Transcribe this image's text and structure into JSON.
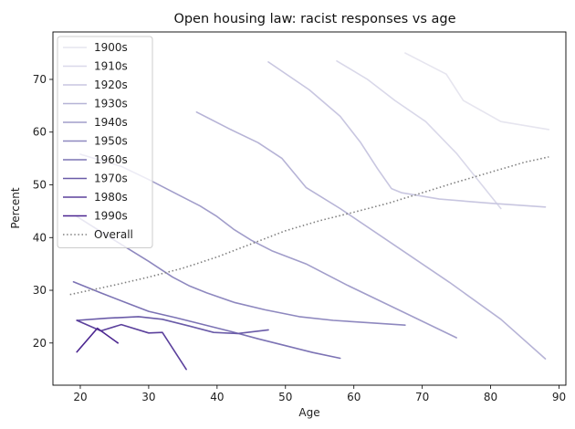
{
  "chart_data": {
    "type": "line",
    "title": "Open housing law: racist responses vs age",
    "xlabel": "Age",
    "ylabel": "Percent",
    "xlim": [
      16,
      91
    ],
    "ylim": [
      12,
      79
    ],
    "xticks": [
      20,
      30,
      40,
      50,
      60,
      70,
      80,
      90
    ],
    "yticks": [
      20,
      30,
      40,
      50,
      60,
      70
    ],
    "grid": false,
    "legend_position": "upper-left",
    "series": [
      {
        "name": "1900s",
        "color": "#e6e5ef",
        "dash": "solid",
        "x": [
          67.5,
          73.5,
          76.0,
          81.5,
          88.5
        ],
        "y": [
          75.0,
          71.0,
          66.0,
          62.0,
          60.5
        ]
      },
      {
        "name": "1910s",
        "color": "#d9d8e9",
        "dash": "solid",
        "x": [
          57.5,
          62.0,
          66.0,
          70.5,
          75.0,
          81.5
        ],
        "y": [
          73.5,
          70.0,
          66.0,
          62.0,
          56.0,
          45.5
        ]
      },
      {
        "name": "1920s",
        "color": "#c8c6e0",
        "dash": "solid",
        "x": [
          47.5,
          53.5,
          58.0,
          61.0,
          63.5,
          65.5,
          67.0,
          72.5,
          80.0,
          88.0
        ],
        "y": [
          73.3,
          68.0,
          63.0,
          58.0,
          53.0,
          49.3,
          48.5,
          47.3,
          46.5,
          45.8
        ]
      },
      {
        "name": "1930s",
        "color": "#b6b3d6",
        "dash": "solid",
        "x": [
          37.0,
          42.0,
          46.0,
          49.5,
          53.0,
          58.0,
          66.0,
          74.0,
          81.5,
          88.0
        ],
        "y": [
          63.8,
          60.5,
          58.0,
          55.0,
          49.5,
          45.5,
          38.5,
          31.5,
          24.5,
          17.0
        ]
      },
      {
        "name": "1940s",
        "color": "#a19dca",
        "dash": "solid",
        "x": [
          20.0,
          26.0,
          30.0,
          34.5,
          37.5,
          40.0,
          42.5,
          45.0,
          48.0,
          53.0,
          59.0,
          67.0,
          75.0
        ],
        "y": [
          55.8,
          53.5,
          51.0,
          48.0,
          46.0,
          44.0,
          41.5,
          39.5,
          37.5,
          35.0,
          31.0,
          26.0,
          21.0
        ]
      },
      {
        "name": "1950s",
        "color": "#8e88bf",
        "dash": "solid",
        "x": [
          19.5,
          25.0,
          30.0,
          33.5,
          36.0,
          38.5,
          42.5,
          47.0,
          52.0,
          57.0,
          67.5
        ],
        "y": [
          44.0,
          39.5,
          35.5,
          32.5,
          30.8,
          29.5,
          27.7,
          26.3,
          25.0,
          24.3,
          23.4
        ]
      },
      {
        "name": "1960s",
        "color": "#7c73b4",
        "dash": "solid",
        "x": [
          19.0,
          23.0,
          27.0,
          30.0,
          34.0,
          38.0,
          42.0,
          46.0,
          50.0,
          54.0,
          58.0
        ],
        "y": [
          31.6,
          29.5,
          27.5,
          26.0,
          24.8,
          23.5,
          22.2,
          20.8,
          19.5,
          18.2,
          17.1
        ]
      },
      {
        "name": "1970s",
        "color": "#6a5ba8",
        "dash": "solid",
        "x": [
          19.5,
          24.0,
          28.5,
          32.0,
          36.0,
          39.5,
          43.0,
          47.5
        ],
        "y": [
          24.3,
          24.7,
          25.0,
          24.5,
          23.2,
          22.0,
          21.8,
          22.5
        ]
      },
      {
        "name": "1980s",
        "color": "#5b409c",
        "dash": "solid",
        "x": [
          19.5,
          23.0,
          26.0,
          30.0,
          32.0,
          35.5
        ],
        "y": [
          24.3,
          22.3,
          23.5,
          21.9,
          22.0,
          15.0
        ]
      },
      {
        "name": "1990s",
        "color": "#4b2590",
        "dash": "solid",
        "x": [
          19.5,
          22.5,
          25.5
        ],
        "y": [
          18.3,
          22.8,
          20.0
        ]
      },
      {
        "name": "Overall",
        "color": "#808080",
        "dash": "dotted",
        "x": [
          18.5,
          25.0,
          30.0,
          35.0,
          40.0,
          45.0,
          50.0,
          55.0,
          60.0,
          65.0,
          70.0,
          75.0,
          80.0,
          85.0,
          88.5
        ],
        "y": [
          29.2,
          31.0,
          32.5,
          34.2,
          36.3,
          38.8,
          41.3,
          43.2,
          44.8,
          46.5,
          48.5,
          50.5,
          52.4,
          54.3,
          55.3
        ]
      }
    ]
  }
}
